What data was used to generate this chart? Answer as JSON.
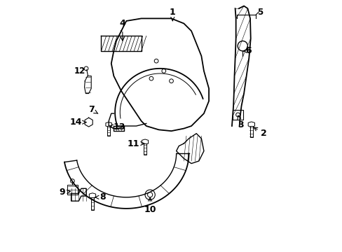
{
  "title": "",
  "background_color": "#ffffff",
  "line_color": "#000000",
  "figsize": [
    4.89,
    3.6
  ],
  "dpi": 100
}
